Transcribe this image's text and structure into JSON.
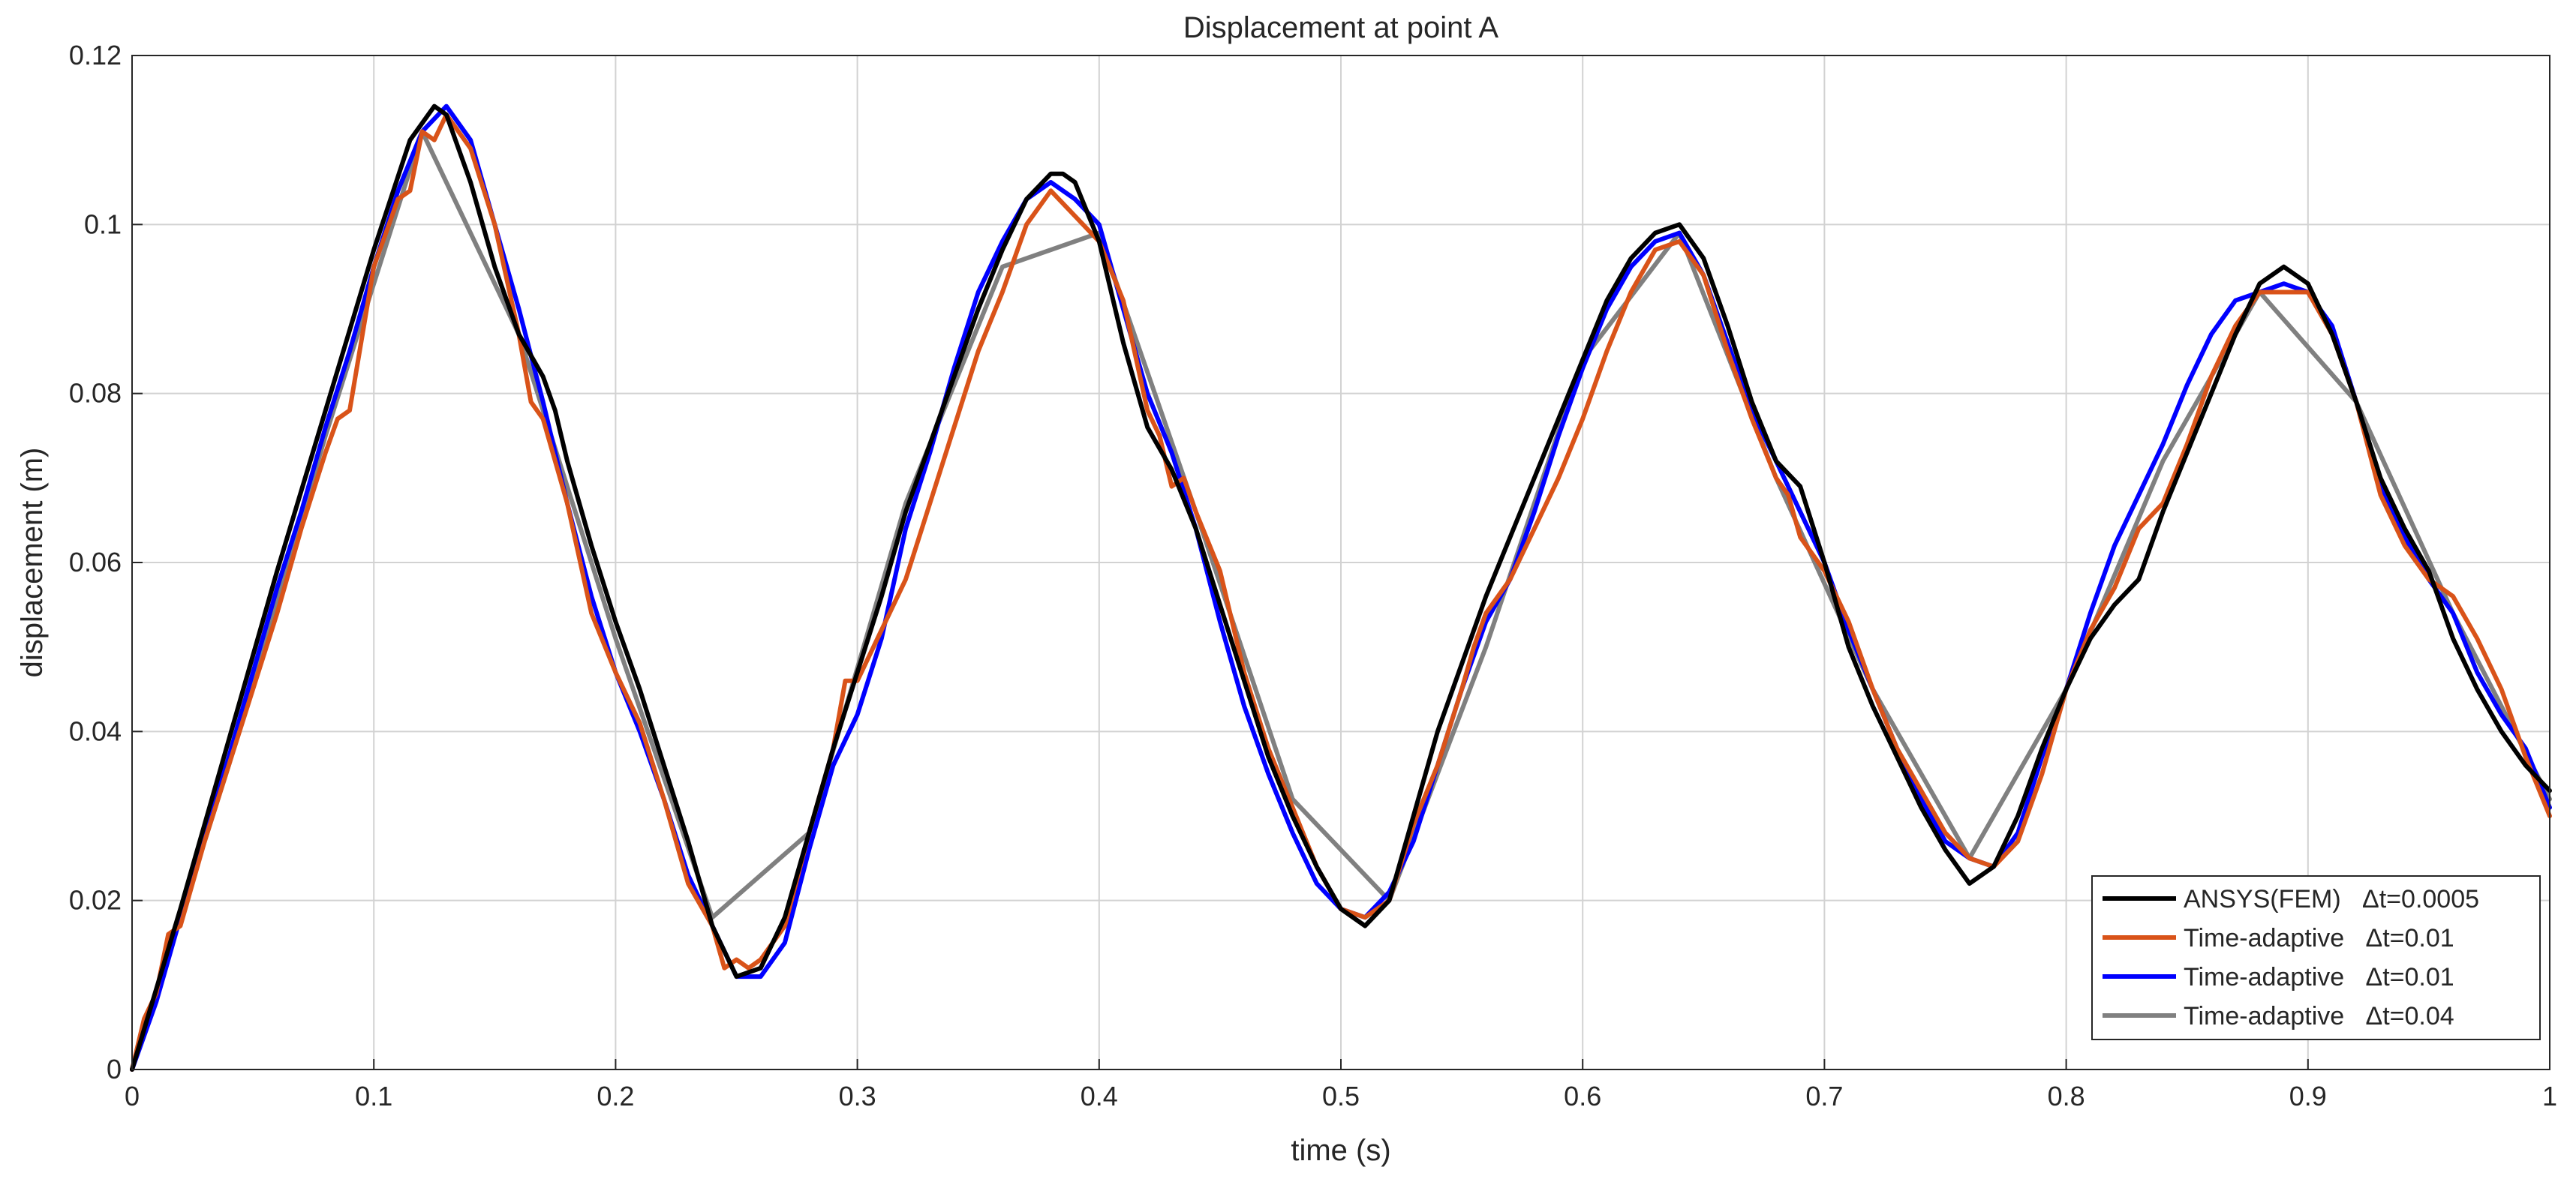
{
  "chart_data": {
    "type": "line",
    "title": "Displacement at point A",
    "xlabel": "time (s)",
    "ylabel": "displacement (m)",
    "xlim": [
      0,
      1
    ],
    "ylim": [
      0,
      0.12
    ],
    "xticks": [
      "0",
      "0.1",
      "0.2",
      "0.3",
      "0.4",
      "0.5",
      "0.6",
      "0.7",
      "0.8",
      "0.9",
      "1"
    ],
    "yticks": [
      "0",
      "0.02",
      "0.04",
      "0.06",
      "0.08",
      "0.1",
      "0.12"
    ],
    "grid": true,
    "legend_position": "bottom-right",
    "series": [
      {
        "name": "ANSYS(FEM)   Δt=0.0005",
        "color": "#000000",
        "x": [
          0,
          0.02,
          0.04,
          0.06,
          0.08,
          0.1,
          0.115,
          0.125,
          0.13,
          0.14,
          0.15,
          0.16,
          0.17,
          0.175,
          0.18,
          0.19,
          0.2,
          0.21,
          0.22,
          0.23,
          0.24,
          0.25,
          0.26,
          0.27,
          0.28,
          0.29,
          0.3,
          0.31,
          0.32,
          0.33,
          0.34,
          0.35,
          0.36,
          0.37,
          0.38,
          0.385,
          0.39,
          0.4,
          0.41,
          0.42,
          0.43,
          0.44,
          0.45,
          0.46,
          0.47,
          0.48,
          0.49,
          0.5,
          0.51,
          0.52,
          0.53,
          0.54,
          0.55,
          0.56,
          0.57,
          0.58,
          0.59,
          0.6,
          0.61,
          0.62,
          0.63,
          0.64,
          0.65,
          0.66,
          0.67,
          0.68,
          0.69,
          0.7,
          0.71,
          0.72,
          0.73,
          0.74,
          0.75,
          0.76,
          0.77,
          0.78,
          0.79,
          0.8,
          0.81,
          0.82,
          0.83,
          0.84,
          0.85,
          0.86,
          0.87,
          0.88,
          0.89,
          0.9,
          0.91,
          0.92,
          0.93,
          0.94,
          0.95,
          0.96,
          0.97,
          0.98,
          0.99,
          1.0
        ],
        "y": [
          0,
          0.019,
          0.039,
          0.059,
          0.078,
          0.097,
          0.11,
          0.114,
          0.113,
          0.105,
          0.095,
          0.087,
          0.082,
          0.078,
          0.072,
          0.062,
          0.053,
          0.045,
          0.036,
          0.027,
          0.017,
          0.011,
          0.012,
          0.018,
          0.028,
          0.038,
          0.047,
          0.056,
          0.066,
          0.074,
          0.082,
          0.09,
          0.097,
          0.103,
          0.106,
          0.106,
          0.105,
          0.098,
          0.086,
          0.076,
          0.071,
          0.064,
          0.055,
          0.046,
          0.037,
          0.03,
          0.024,
          0.019,
          0.017,
          0.02,
          0.03,
          0.04,
          0.048,
          0.056,
          0.063,
          0.07,
          0.077,
          0.084,
          0.091,
          0.096,
          0.099,
          0.1,
          0.096,
          0.088,
          0.079,
          0.072,
          0.069,
          0.06,
          0.05,
          0.043,
          0.037,
          0.031,
          0.026,
          0.022,
          0.024,
          0.03,
          0.038,
          0.045,
          0.051,
          0.055,
          0.058,
          0.066,
          0.073,
          0.08,
          0.087,
          0.093,
          0.095,
          0.093,
          0.087,
          0.079,
          0.07,
          0.064,
          0.059,
          0.051,
          0.045,
          0.04,
          0.036,
          0.033
        ]
      },
      {
        "name": "Time-adaptive   Δt=0.01",
        "color": "#D95319",
        "x": [
          0,
          0.005,
          0.01,
          0.015,
          0.02,
          0.03,
          0.04,
          0.05,
          0.06,
          0.07,
          0.08,
          0.085,
          0.09,
          0.1,
          0.11,
          0.115,
          0.12,
          0.125,
          0.13,
          0.135,
          0.14,
          0.15,
          0.16,
          0.165,
          0.17,
          0.18,
          0.19,
          0.2,
          0.21,
          0.22,
          0.23,
          0.24,
          0.245,
          0.25,
          0.255,
          0.26,
          0.265,
          0.27,
          0.28,
          0.29,
          0.295,
          0.3,
          0.31,
          0.32,
          0.33,
          0.34,
          0.35,
          0.36,
          0.37,
          0.38,
          0.39,
          0.4,
          0.41,
          0.42,
          0.425,
          0.43,
          0.435,
          0.44,
          0.45,
          0.46,
          0.47,
          0.48,
          0.49,
          0.5,
          0.51,
          0.52,
          0.53,
          0.54,
          0.55,
          0.555,
          0.56,
          0.57,
          0.58,
          0.59,
          0.6,
          0.61,
          0.62,
          0.63,
          0.64,
          0.65,
          0.66,
          0.67,
          0.68,
          0.685,
          0.69,
          0.7,
          0.71,
          0.72,
          0.73,
          0.74,
          0.75,
          0.76,
          0.77,
          0.78,
          0.79,
          0.8,
          0.81,
          0.82,
          0.83,
          0.84,
          0.85,
          0.86,
          0.87,
          0.88,
          0.89,
          0.9,
          0.91,
          0.92,
          0.93,
          0.94,
          0.95,
          0.96,
          0.97,
          0.98,
          0.99,
          1.0
        ],
        "y": [
          0,
          0.006,
          0.009,
          0.016,
          0.017,
          0.027,
          0.036,
          0.045,
          0.054,
          0.064,
          0.073,
          0.077,
          0.078,
          0.095,
          0.103,
          0.104,
          0.111,
          0.11,
          0.113,
          0.111,
          0.109,
          0.1,
          0.087,
          0.079,
          0.077,
          0.067,
          0.054,
          0.047,
          0.041,
          0.032,
          0.022,
          0.017,
          0.012,
          0.013,
          0.012,
          0.013,
          0.015,
          0.017,
          0.028,
          0.038,
          0.046,
          0.046,
          0.052,
          0.058,
          0.067,
          0.076,
          0.085,
          0.092,
          0.1,
          0.104,
          0.101,
          0.098,
          0.091,
          0.078,
          0.075,
          0.069,
          0.07,
          0.066,
          0.059,
          0.047,
          0.038,
          0.031,
          0.024,
          0.019,
          0.018,
          0.02,
          0.029,
          0.036,
          0.045,
          0.05,
          0.054,
          0.058,
          0.064,
          0.07,
          0.077,
          0.085,
          0.092,
          0.097,
          0.098,
          0.094,
          0.085,
          0.077,
          0.07,
          0.068,
          0.063,
          0.059,
          0.053,
          0.045,
          0.038,
          0.033,
          0.028,
          0.025,
          0.024,
          0.027,
          0.035,
          0.045,
          0.052,
          0.057,
          0.064,
          0.067,
          0.074,
          0.082,
          0.088,
          0.092,
          0.092,
          0.092,
          0.087,
          0.079,
          0.068,
          0.062,
          0.058,
          0.056,
          0.051,
          0.045,
          0.037,
          0.03
        ]
      },
      {
        "name": "Time-adaptive   Δt=0.01",
        "color": "#0000FF",
        "x": [
          0,
          0.01,
          0.02,
          0.03,
          0.04,
          0.05,
          0.06,
          0.07,
          0.08,
          0.09,
          0.1,
          0.11,
          0.12,
          0.13,
          0.14,
          0.15,
          0.16,
          0.17,
          0.18,
          0.19,
          0.2,
          0.21,
          0.22,
          0.23,
          0.24,
          0.25,
          0.26,
          0.27,
          0.28,
          0.29,
          0.3,
          0.31,
          0.32,
          0.33,
          0.34,
          0.35,
          0.36,
          0.37,
          0.38,
          0.39,
          0.4,
          0.41,
          0.42,
          0.43,
          0.44,
          0.45,
          0.46,
          0.47,
          0.48,
          0.49,
          0.5,
          0.51,
          0.52,
          0.53,
          0.54,
          0.55,
          0.56,
          0.57,
          0.58,
          0.59,
          0.6,
          0.61,
          0.62,
          0.63,
          0.64,
          0.65,
          0.66,
          0.67,
          0.68,
          0.69,
          0.7,
          0.71,
          0.72,
          0.73,
          0.74,
          0.75,
          0.76,
          0.77,
          0.78,
          0.79,
          0.8,
          0.81,
          0.82,
          0.83,
          0.84,
          0.85,
          0.86,
          0.87,
          0.88,
          0.89,
          0.9,
          0.91,
          0.92,
          0.93,
          0.94,
          0.95,
          0.96,
          0.97,
          0.98,
          0.99,
          1.0
        ],
        "y": [
          0,
          0.008,
          0.018,
          0.028,
          0.037,
          0.047,
          0.057,
          0.066,
          0.076,
          0.085,
          0.095,
          0.104,
          0.111,
          0.114,
          0.11,
          0.1,
          0.09,
          0.079,
          0.067,
          0.056,
          0.047,
          0.04,
          0.032,
          0.023,
          0.017,
          0.011,
          0.011,
          0.015,
          0.026,
          0.036,
          0.042,
          0.051,
          0.064,
          0.073,
          0.083,
          0.092,
          0.098,
          0.103,
          0.105,
          0.103,
          0.1,
          0.09,
          0.08,
          0.073,
          0.064,
          0.053,
          0.043,
          0.035,
          0.028,
          0.022,
          0.019,
          0.018,
          0.021,
          0.027,
          0.036,
          0.045,
          0.053,
          0.058,
          0.066,
          0.075,
          0.083,
          0.09,
          0.095,
          0.098,
          0.099,
          0.094,
          0.086,
          0.078,
          0.072,
          0.066,
          0.06,
          0.052,
          0.045,
          0.038,
          0.032,
          0.027,
          0.025,
          0.024,
          0.028,
          0.037,
          0.045,
          0.054,
          0.062,
          0.068,
          0.074,
          0.081,
          0.087,
          0.091,
          0.092,
          0.093,
          0.092,
          0.088,
          0.079,
          0.069,
          0.063,
          0.058,
          0.054,
          0.047,
          0.042,
          0.038,
          0.031
        ]
      },
      {
        "name": "Time-adaptive   Δt=0.04",
        "color": "#808080",
        "x": [
          0,
          0.04,
          0.08,
          0.12,
          0.16,
          0.2,
          0.24,
          0.28,
          0.32,
          0.36,
          0.4,
          0.44,
          0.48,
          0.52,
          0.56,
          0.6,
          0.64,
          0.68,
          0.72,
          0.76,
          0.8,
          0.84,
          0.88,
          0.92,
          0.96,
          1.0
        ],
        "y": [
          0,
          0.036,
          0.075,
          0.111,
          0.087,
          0.051,
          0.018,
          0.028,
          0.067,
          0.095,
          0.099,
          0.066,
          0.032,
          0.02,
          0.05,
          0.084,
          0.099,
          0.07,
          0.045,
          0.025,
          0.045,
          0.072,
          0.092,
          0.079,
          0.054,
          0.032
        ]
      }
    ]
  }
}
